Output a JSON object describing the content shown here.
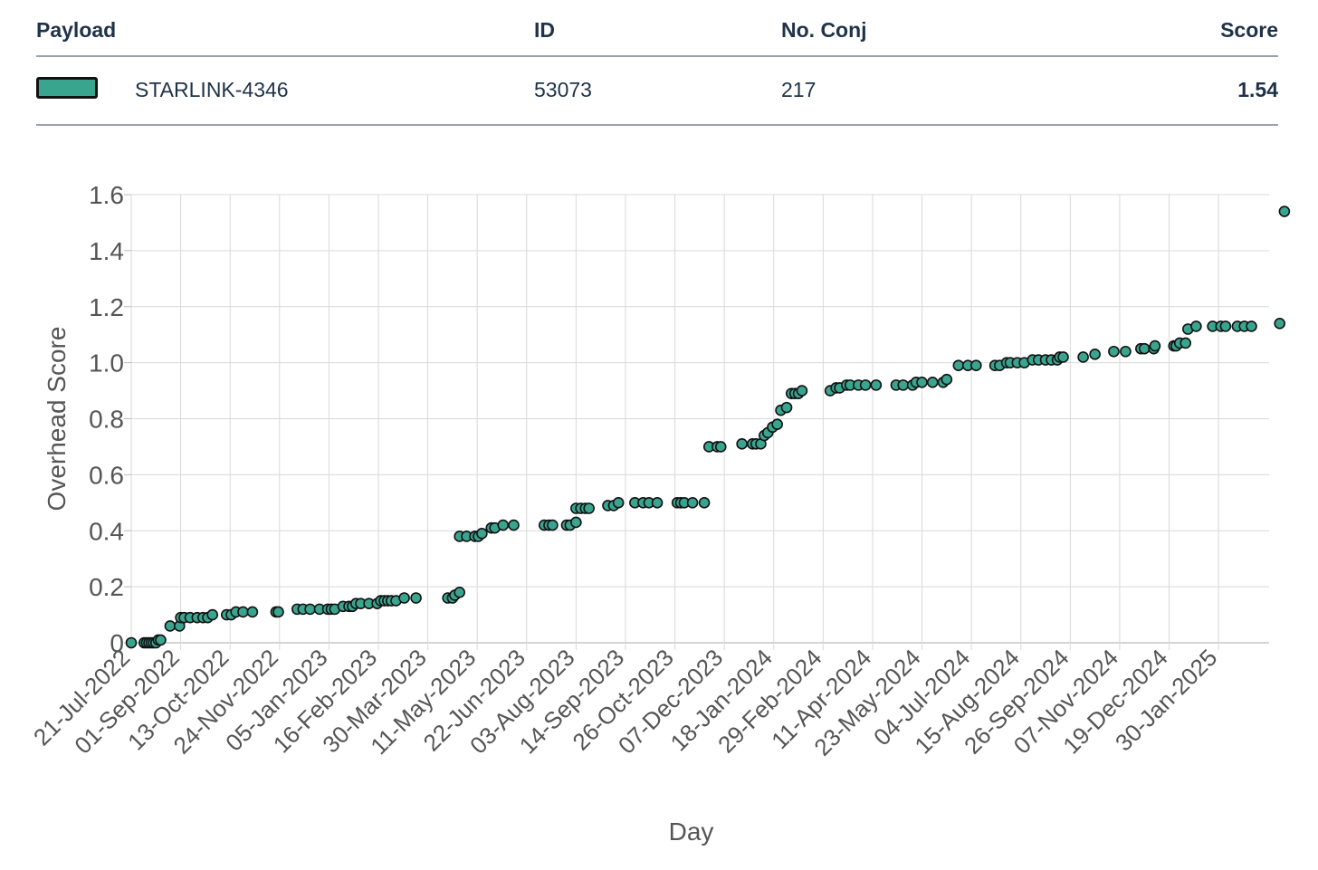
{
  "table": {
    "headers": {
      "payload": "Payload",
      "id": "ID",
      "conj": "No. Conj",
      "score": "Score"
    },
    "row": {
      "color": "#3aa58f",
      "payload": "STARLINK-4346",
      "id": "53073",
      "conj": "217",
      "score": "1.54"
    }
  },
  "chart_data": {
    "type": "scatter",
    "title": "",
    "xlabel": "Day",
    "ylabel": "Overhead Score",
    "ylim": [
      0,
      1.6
    ],
    "yticks": [
      "0",
      "0.2",
      "0.4",
      "0.6",
      "0.8",
      "1.0",
      "1.2",
      "1.4",
      "1.6"
    ],
    "xlim": [
      "2022-07-21",
      "2025-03-14"
    ],
    "xticks": [
      "21-Jul-2022",
      "01-Sep-2022",
      "13-Oct-2022",
      "24-Nov-2022",
      "05-Jan-2023",
      "16-Feb-2023",
      "30-Mar-2023",
      "11-May-2023",
      "22-Jun-2023",
      "03-Aug-2023",
      "14-Sep-2023",
      "26-Oct-2023",
      "07-Dec-2023",
      "18-Jan-2024",
      "29-Feb-2024",
      "11-Apr-2024",
      "23-May-2024",
      "04-Jul-2024",
      "15-Aug-2024",
      "26-Sep-2024",
      "07-Nov-2024",
      "19-Dec-2024",
      "30-Jan-2025"
    ],
    "grid": true,
    "marker_color": "#3aa58f",
    "series": [
      {
        "points": [
          [
            "2022-07-21",
            0.0
          ],
          [
            "2022-08-01",
            0.0
          ],
          [
            "2022-08-03",
            0.0
          ],
          [
            "2022-08-05",
            0.0
          ],
          [
            "2022-08-07",
            0.0
          ],
          [
            "2022-08-09",
            0.0
          ],
          [
            "2022-08-11",
            0.0
          ],
          [
            "2022-08-13",
            0.01
          ],
          [
            "2022-08-15",
            0.01
          ],
          [
            "2022-08-23",
            0.06
          ],
          [
            "2022-08-31",
            0.06
          ],
          [
            "2022-09-01",
            0.09
          ],
          [
            "2022-09-04",
            0.09
          ],
          [
            "2022-09-09",
            0.09
          ],
          [
            "2022-09-15",
            0.09
          ],
          [
            "2022-09-20",
            0.09
          ],
          [
            "2022-09-24",
            0.09
          ],
          [
            "2022-09-28",
            0.1
          ],
          [
            "2022-10-10",
            0.1
          ],
          [
            "2022-10-14",
            0.1
          ],
          [
            "2022-10-18",
            0.11
          ],
          [
            "2022-10-24",
            0.11
          ],
          [
            "2022-11-01",
            0.11
          ],
          [
            "2022-11-21",
            0.11
          ],
          [
            "2022-11-23",
            0.11
          ],
          [
            "2022-12-09",
            0.12
          ],
          [
            "2022-12-14",
            0.12
          ],
          [
            "2022-12-20",
            0.12
          ],
          [
            "2022-12-28",
            0.12
          ],
          [
            "2023-01-04",
            0.12
          ],
          [
            "2023-01-07",
            0.12
          ],
          [
            "2023-01-10",
            0.12
          ],
          [
            "2023-01-17",
            0.13
          ],
          [
            "2023-01-22",
            0.13
          ],
          [
            "2023-01-25",
            0.13
          ],
          [
            "2023-01-28",
            0.14
          ],
          [
            "2023-02-01",
            0.14
          ],
          [
            "2023-02-08",
            0.14
          ],
          [
            "2023-02-15",
            0.14
          ],
          [
            "2023-02-18",
            0.15
          ],
          [
            "2023-02-21",
            0.15
          ],
          [
            "2023-02-24",
            0.15
          ],
          [
            "2023-02-27",
            0.15
          ],
          [
            "2023-03-03",
            0.15
          ],
          [
            "2023-03-10",
            0.16
          ],
          [
            "2023-03-20",
            0.16
          ],
          [
            "2023-04-16",
            0.16
          ],
          [
            "2023-04-20",
            0.16
          ],
          [
            "2023-04-22",
            0.17
          ],
          [
            "2023-04-26",
            0.18
          ],
          [
            "2023-04-26",
            0.38
          ],
          [
            "2023-05-02",
            0.38
          ],
          [
            "2023-05-09",
            0.38
          ],
          [
            "2023-05-12",
            0.38
          ],
          [
            "2023-05-15",
            0.39
          ],
          [
            "2023-05-23",
            0.41
          ],
          [
            "2023-05-26",
            0.41
          ],
          [
            "2023-06-02",
            0.42
          ],
          [
            "2023-06-11",
            0.42
          ],
          [
            "2023-07-07",
            0.42
          ],
          [
            "2023-07-11",
            0.42
          ],
          [
            "2023-07-14",
            0.42
          ],
          [
            "2023-07-26",
            0.42
          ],
          [
            "2023-07-29",
            0.42
          ],
          [
            "2023-08-03",
            0.43
          ],
          [
            "2023-08-03",
            0.48
          ],
          [
            "2023-08-07",
            0.48
          ],
          [
            "2023-08-11",
            0.48
          ],
          [
            "2023-08-14",
            0.48
          ],
          [
            "2023-08-30",
            0.49
          ],
          [
            "2023-09-04",
            0.49
          ],
          [
            "2023-09-08",
            0.5
          ],
          [
            "2023-09-22",
            0.5
          ],
          [
            "2023-09-29",
            0.5
          ],
          [
            "2023-10-04",
            0.5
          ],
          [
            "2023-10-11",
            0.5
          ],
          [
            "2023-10-28",
            0.5
          ],
          [
            "2023-10-31",
            0.5
          ],
          [
            "2023-11-03",
            0.5
          ],
          [
            "2023-11-10",
            0.5
          ],
          [
            "2023-11-20",
            0.5
          ],
          [
            "2023-11-24",
            0.7
          ],
          [
            "2023-12-01",
            0.7
          ],
          [
            "2023-12-04",
            0.7
          ],
          [
            "2023-12-22",
            0.71
          ],
          [
            "2023-12-31",
            0.71
          ],
          [
            "2024-01-03",
            0.71
          ],
          [
            "2024-01-07",
            0.71
          ],
          [
            "2024-01-10",
            0.74
          ],
          [
            "2024-01-13",
            0.75
          ],
          [
            "2024-01-17",
            0.77
          ],
          [
            "2024-01-21",
            0.78
          ],
          [
            "2024-01-24",
            0.83
          ],
          [
            "2024-01-29",
            0.84
          ],
          [
            "2024-02-02",
            0.89
          ],
          [
            "2024-02-05",
            0.89
          ],
          [
            "2024-02-08",
            0.89
          ],
          [
            "2024-02-11",
            0.9
          ],
          [
            "2024-03-06",
            0.9
          ],
          [
            "2024-03-11",
            0.91
          ],
          [
            "2024-03-14",
            0.91
          ],
          [
            "2024-03-20",
            0.92
          ],
          [
            "2024-03-23",
            0.92
          ],
          [
            "2024-03-30",
            0.92
          ],
          [
            "2024-04-05",
            0.92
          ],
          [
            "2024-04-14",
            0.92
          ],
          [
            "2024-05-01",
            0.92
          ],
          [
            "2024-05-07",
            0.92
          ],
          [
            "2024-05-15",
            0.92
          ],
          [
            "2024-05-18",
            0.93
          ],
          [
            "2024-05-23",
            0.93
          ],
          [
            "2024-06-01",
            0.93
          ],
          [
            "2024-06-10",
            0.93
          ],
          [
            "2024-06-13",
            0.94
          ],
          [
            "2024-06-23",
            0.99
          ],
          [
            "2024-07-01",
            0.99
          ],
          [
            "2024-07-08",
            0.99
          ],
          [
            "2024-07-24",
            0.99
          ],
          [
            "2024-07-28",
            0.99
          ],
          [
            "2024-08-03",
            1.0
          ],
          [
            "2024-08-06",
            1.0
          ],
          [
            "2024-08-12",
            1.0
          ],
          [
            "2024-08-18",
            1.0
          ],
          [
            "2024-08-25",
            1.01
          ],
          [
            "2024-08-30",
            1.01
          ],
          [
            "2024-09-05",
            1.01
          ],
          [
            "2024-09-10",
            1.01
          ],
          [
            "2024-09-15",
            1.01
          ],
          [
            "2024-09-17",
            1.02
          ],
          [
            "2024-09-20",
            1.02
          ],
          [
            "2024-10-07",
            1.02
          ],
          [
            "2024-10-17",
            1.03
          ],
          [
            "2024-11-02",
            1.04
          ],
          [
            "2024-11-12",
            1.04
          ],
          [
            "2024-11-25",
            1.05
          ],
          [
            "2024-11-28",
            1.05
          ],
          [
            "2024-12-06",
            1.05
          ],
          [
            "2024-12-07",
            1.06
          ],
          [
            "2024-12-23",
            1.06
          ],
          [
            "2024-12-25",
            1.06
          ],
          [
            "2024-12-28",
            1.07
          ],
          [
            "2025-01-02",
            1.07
          ],
          [
            "2025-01-04",
            1.12
          ],
          [
            "2025-01-11",
            1.13
          ],
          [
            "2025-01-25",
            1.13
          ],
          [
            "2025-02-01",
            1.13
          ],
          [
            "2025-02-05",
            1.13
          ],
          [
            "2025-02-15",
            1.13
          ],
          [
            "2025-02-21",
            1.13
          ],
          [
            "2025-02-27",
            1.13
          ],
          [
            "2025-03-23",
            1.14
          ],
          [
            "2025-03-27",
            1.54
          ]
        ]
      }
    ]
  }
}
